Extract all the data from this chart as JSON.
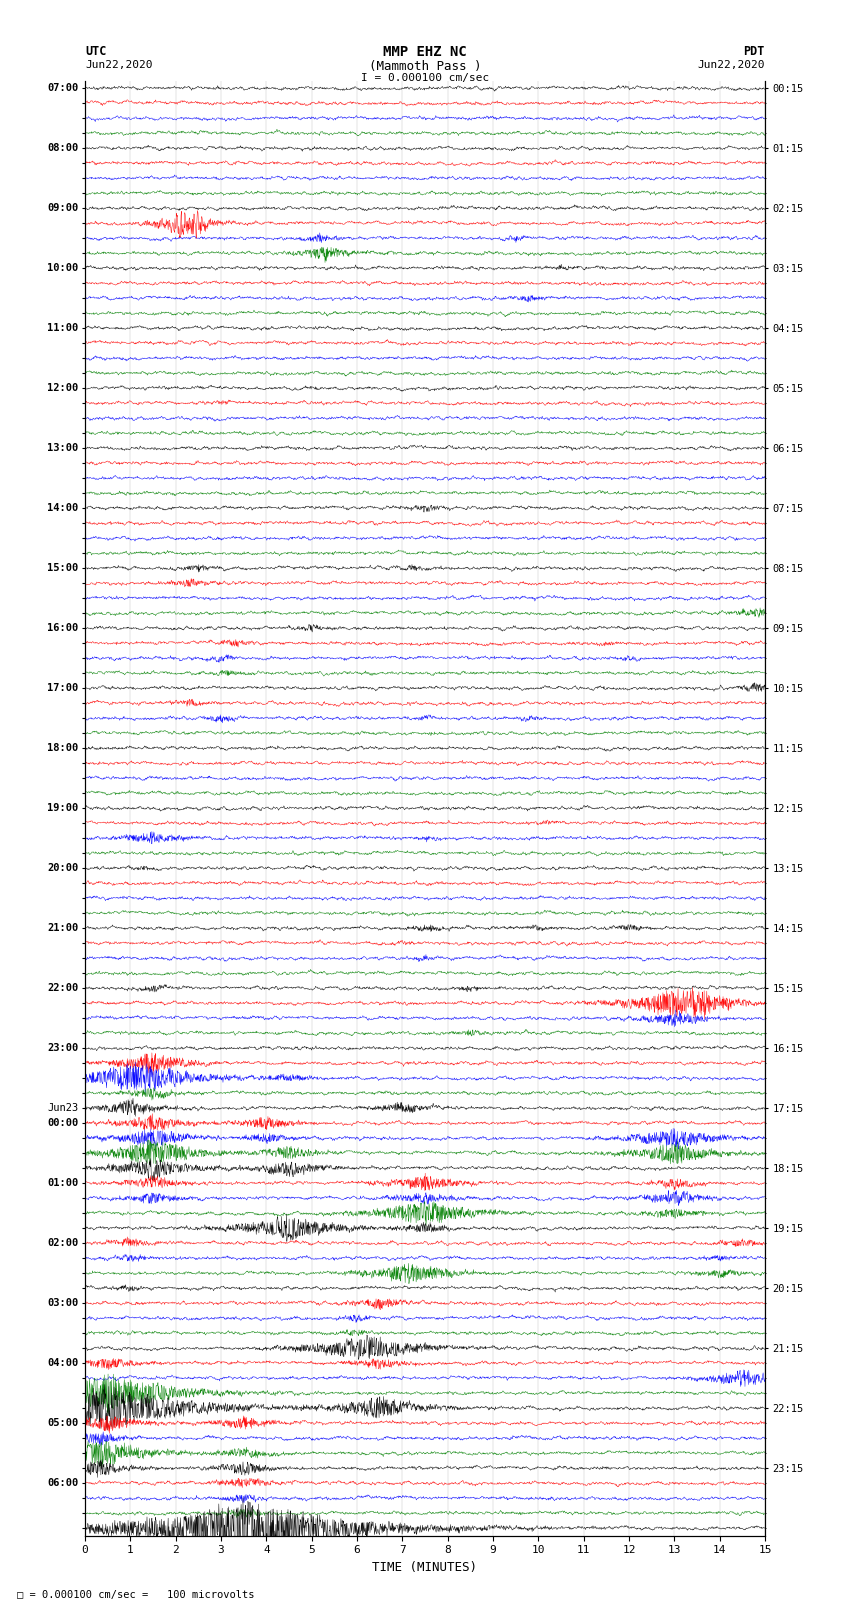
{
  "title_line1": "MMP EHZ NC",
  "title_line2": "(Mammoth Pass )",
  "scale_label": "I = 0.000100 cm/sec",
  "left_header": "UTC",
  "left_date": "Jun22,2020",
  "right_header": "PDT",
  "right_date": "Jun22,2020",
  "trace_colors": [
    "black",
    "red",
    "blue",
    "green"
  ],
  "xlabel": "TIME (MINUTES)",
  "xmin": 0,
  "xmax": 15,
  "xticks": [
    0,
    1,
    2,
    3,
    4,
    5,
    6,
    7,
    8,
    9,
    10,
    11,
    12,
    13,
    14,
    15
  ],
  "background_color": "#ffffff",
  "n_rows": 97,
  "footer_label": "= 0.000100 cm/sec =   100 microvolts",
  "left_times_major": {
    "0": "07:00",
    "4": "08:00",
    "8": "09:00",
    "12": "10:00",
    "16": "11:00",
    "20": "12:00",
    "24": "13:00",
    "28": "14:00",
    "32": "15:00",
    "36": "16:00",
    "40": "17:00",
    "44": "18:00",
    "48": "19:00",
    "52": "20:00",
    "56": "21:00",
    "60": "22:00",
    "64": "23:00",
    "68": "Jun23",
    "69": "00:00",
    "73": "01:00",
    "77": "02:00",
    "81": "03:00",
    "85": "04:00",
    "89": "05:00",
    "93": "06:00"
  },
  "right_times_major": {
    "0": "00:15",
    "4": "01:15",
    "8": "02:15",
    "12": "03:15",
    "16": "04:15",
    "20": "05:15",
    "24": "06:15",
    "28": "07:15",
    "32": "08:15",
    "36": "09:15",
    "40": "10:15",
    "44": "11:15",
    "48": "12:15",
    "52": "13:15",
    "56": "14:15",
    "60": "15:15",
    "64": "16:15",
    "68": "17:15",
    "72": "18:15",
    "76": "19:15",
    "80": "20:15",
    "84": "21:15",
    "88": "22:15",
    "92": "23:15"
  }
}
